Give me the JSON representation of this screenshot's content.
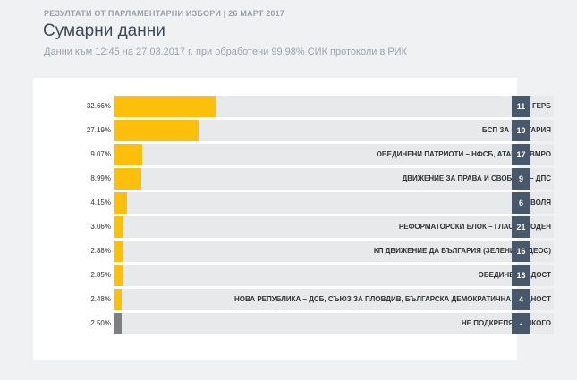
{
  "header": {
    "supertitle": "РЕЗУЛТАТИ ОТ ПАРЛАМЕНТАРНИ ИЗБОРИ | 26 МАРТ 2017",
    "title": "Сумарни данни",
    "subtitle": "Данни към 12:45 на 27.03.2017 г. при обработени 99.98% СИК протоколи в РИК"
  },
  "chart_data": {
    "type": "bar",
    "orientation": "horizontal",
    "xlim": [
      0,
      100
    ],
    "categories": [
      "ПП ГЕРБ",
      "БСП ЗА БЪЛГАРИЯ",
      "ОБЕДИНЕНИ ПАТРИОТИ – НФСБ, АТАКА И ВМРО",
      "ДВИЖЕНИЕ ЗА ПРАВА И СВОБОДИ – ДПС",
      "ВОЛЯ",
      "РЕФОРМАТОРСКИ БЛОК – ГЛАС НАРОДЕН",
      "КП ДВИЖЕНИЕ ДА БЪЛГАРИЯ (ЗЕЛЕНИТЕ, ДЕОС)",
      "ОБЕДИНЕНИЕ ДОСТ",
      "НОВА РЕПУБЛИКА – ДСБ, СЪЮЗ ЗА ПЛОВДИВ, БЪЛГАРСКА ДЕМОКРАТИЧНА ОБЩНОСТ",
      "НЕ ПОДКРЕПЯМ НИКОГО"
    ],
    "values": [
      32.66,
      27.19,
      9.07,
      8.99,
      4.15,
      3.06,
      2.88,
      2.85,
      2.48,
      2.5
    ],
    "value_labels": [
      "32.66%",
      "27.19%",
      "9.07%",
      "8.99%",
      "4.15%",
      "3.06%",
      "2.88%",
      "2.85%",
      "2.48%",
      "2.50%"
    ],
    "seats": [
      "11",
      "10",
      "17",
      "9",
      "6",
      "21",
      "16",
      "13",
      "4",
      "-"
    ],
    "colors": [
      "#fcbf0a",
      "#fcbf0a",
      "#fcbf0a",
      "#fcbf0a",
      "#fcbf0a",
      "#fcbf0a",
      "#fcbf0a",
      "#fcbf0a",
      "#fcbf0a",
      "#7f7f7f"
    ],
    "track_color": "#e8e9eb",
    "badge_color": "#48586a"
  }
}
